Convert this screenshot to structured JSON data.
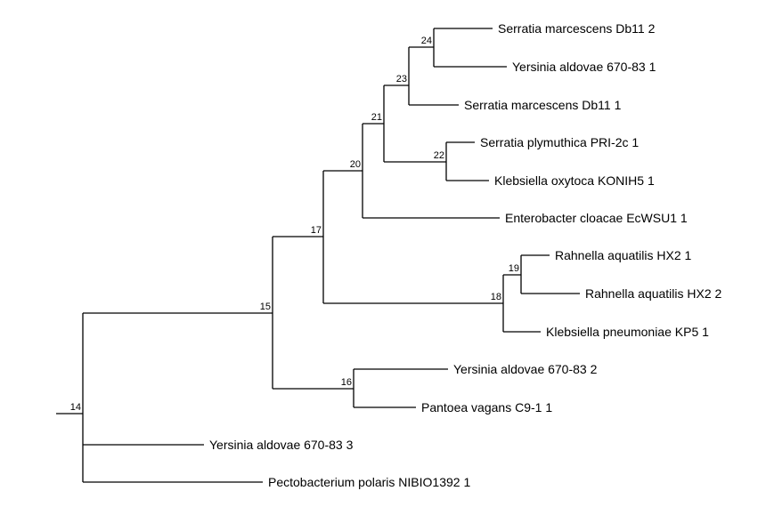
{
  "tree": {
    "line_color": "#000000",
    "nodes": [
      {
        "id": "14",
        "label": "14",
        "children": [
          "15",
          "yal3",
          "ppol1"
        ]
      },
      {
        "id": "15",
        "label": "15",
        "children": [
          "17",
          "16"
        ]
      },
      {
        "id": "17",
        "label": "17",
        "children": [
          "20",
          "18"
        ]
      },
      {
        "id": "20",
        "label": "20",
        "children": [
          "21",
          "ecl1"
        ]
      },
      {
        "id": "21",
        "label": "21",
        "children": [
          "23",
          "22"
        ]
      },
      {
        "id": "23",
        "label": "23",
        "children": [
          "24",
          "smar1"
        ]
      },
      {
        "id": "24",
        "label": "24",
        "children": [
          "smar2",
          "yal1"
        ]
      },
      {
        "id": "22",
        "label": "22",
        "children": [
          "spl1",
          "kox1"
        ]
      },
      {
        "id": "18",
        "label": "18",
        "children": [
          "19",
          "kpn1"
        ]
      },
      {
        "id": "19",
        "label": "19",
        "children": [
          "raq1",
          "raq2"
        ]
      },
      {
        "id": "16",
        "label": "16",
        "children": [
          "yal2",
          "pva1"
        ]
      }
    ],
    "leaves": [
      {
        "id": "smar2",
        "label": "Serratia marcescens Db11 2"
      },
      {
        "id": "yal1",
        "label": "Yersinia aldovae 670-83 1"
      },
      {
        "id": "smar1",
        "label": "Serratia marcescens Db11 1"
      },
      {
        "id": "spl1",
        "label": "Serratia plymuthica PRI-2c 1"
      },
      {
        "id": "kox1",
        "label": "Klebsiella oxytoca KONIH5 1"
      },
      {
        "id": "ecl1",
        "label": "Enterobacter cloacae EcWSU1 1"
      },
      {
        "id": "raq1",
        "label": "Rahnella aquatilis HX2 1"
      },
      {
        "id": "raq2",
        "label": "Rahnella aquatilis HX2 2"
      },
      {
        "id": "kpn1",
        "label": "Klebsiella pneumoniae KP5 1"
      },
      {
        "id": "yal2",
        "label": "Yersinia aldovae 670-83 2"
      },
      {
        "id": "pva1",
        "label": "Pantoea vagans C9-1 1"
      },
      {
        "id": "yal3",
        "label": "Yersinia aldovae 670-83 3"
      },
      {
        "id": "ppol1",
        "label": "Pectobacterium polaris NIBIO1392 1"
      }
    ]
  }
}
